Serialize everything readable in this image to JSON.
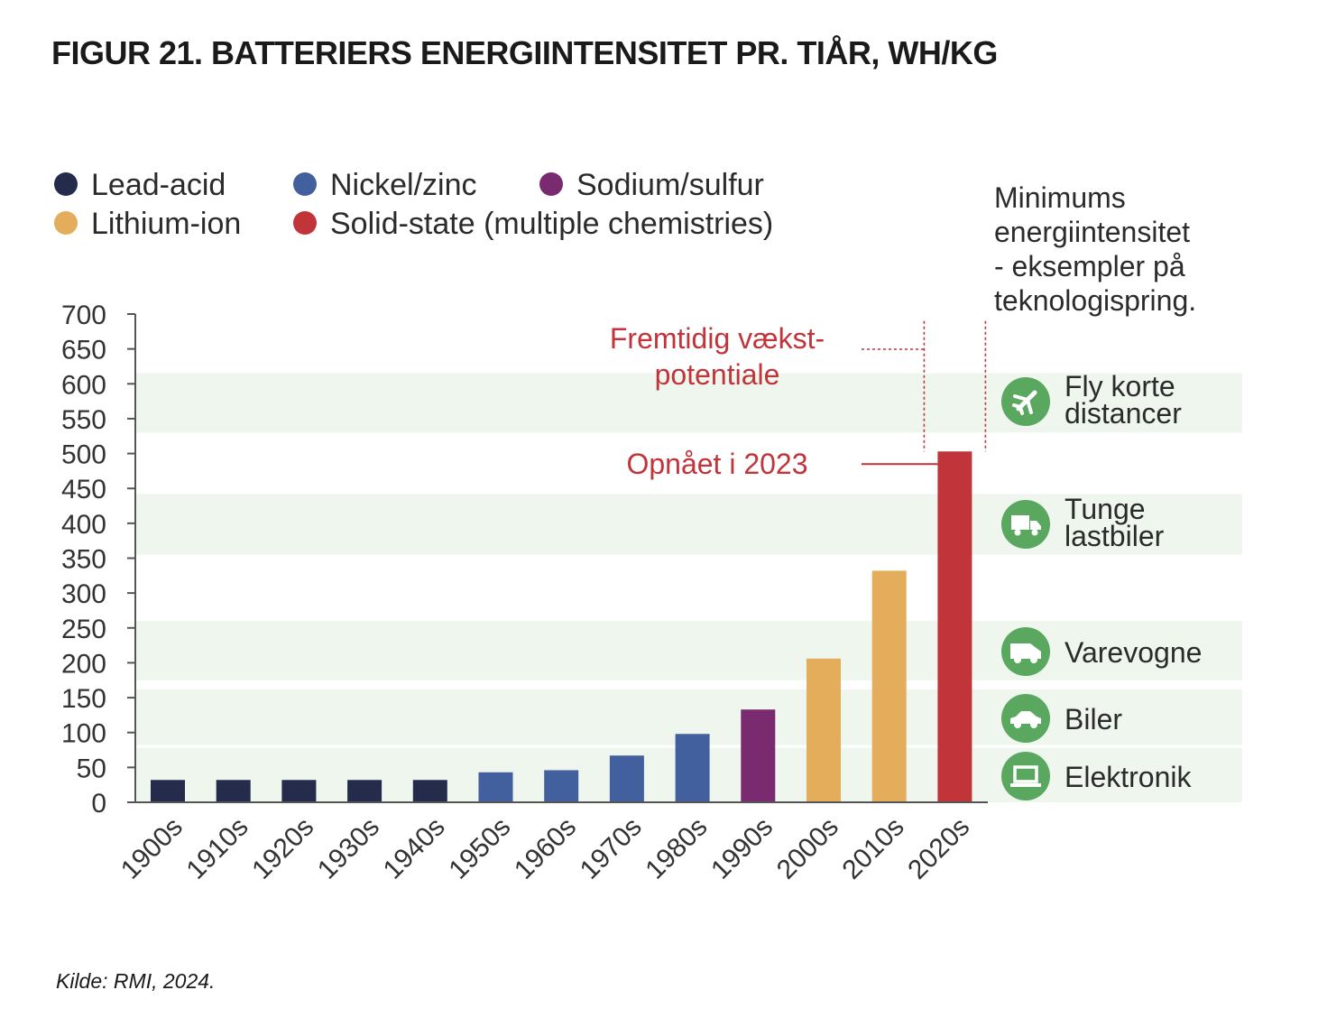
{
  "title": "FIGUR 21.  BATTERIERS ENERGIINTENSITET PR. TIÅR, WH/KG",
  "source": "Kilde: RMI, 2024.",
  "colors": {
    "lead_acid": "#252b4a",
    "nickel_zinc": "#43609e",
    "sodium_sulfur": "#7a2a6e",
    "lithium_ion": "#e3ad5b",
    "solid_state": "#c0343a",
    "band": "#eef6ee",
    "icon": "#5aa85f",
    "annotation": "#c0343a"
  },
  "chart_data": {
    "type": "bar",
    "categories": [
      "1900s",
      "1910s",
      "1920s",
      "1930s",
      "1940s",
      "1950s",
      "1960s",
      "1970s",
      "1980s",
      "1990s",
      "2000s",
      "2010s",
      "2020s"
    ],
    "values": [
      32,
      32,
      32,
      32,
      32,
      43,
      46,
      67,
      98,
      133,
      206,
      332,
      503
    ],
    "bar_series": [
      "lead_acid",
      "lead_acid",
      "lead_acid",
      "lead_acid",
      "lead_acid",
      "nickel_zinc",
      "nickel_zinc",
      "nickel_zinc",
      "nickel_zinc",
      "sodium_sulfur",
      "lithium_ion",
      "lithium_ion",
      "solid_state"
    ],
    "ylim": [
      0,
      700
    ],
    "yticks": [
      0,
      50,
      100,
      150,
      200,
      250,
      300,
      350,
      400,
      450,
      500,
      550,
      600,
      650,
      700
    ],
    "xlabel": "",
    "ylabel": "",
    "grid": false,
    "legend_position": "top-left",
    "legend": [
      {
        "key": "lead_acid",
        "label": "Lead-acid"
      },
      {
        "key": "nickel_zinc",
        "label": "Nickel/zinc"
      },
      {
        "key": "sodium_sulfur",
        "label": "Sodium/sulfur"
      },
      {
        "key": "lithium_ion",
        "label": "Lithium-ion"
      },
      {
        "key": "solid_state",
        "label": "Solid-state (multiple chemistries)"
      }
    ],
    "annotations": {
      "future": [
        "Fremtidig vækst-",
        "potentiale"
      ],
      "achieved": "Opnået i 2023",
      "future_range": [
        503,
        690
      ]
    },
    "threshold_panel": {
      "title": [
        "Minimums",
        "energiintensitet",
        "- eksempler på",
        "teknologispring."
      ],
      "bands": [
        {
          "name": "aircraft",
          "icon": "plane-icon",
          "label": [
            "Fly korte",
            "distancer"
          ],
          "range": [
            530,
            615
          ]
        },
        {
          "name": "trucks",
          "icon": "truck-icon",
          "label": [
            "Tunge",
            "lastbiler"
          ],
          "range": [
            355,
            442
          ]
        },
        {
          "name": "vans",
          "icon": "van-icon",
          "label": [
            "Varevogne"
          ],
          "range": [
            175,
            260
          ]
        },
        {
          "name": "cars",
          "icon": "car-icon",
          "label": [
            "Biler"
          ],
          "range": [
            82,
            162
          ]
        },
        {
          "name": "electronics",
          "icon": "laptop-icon",
          "label": [
            "Elektronik"
          ],
          "range": [
            0,
            78
          ]
        }
      ]
    }
  }
}
